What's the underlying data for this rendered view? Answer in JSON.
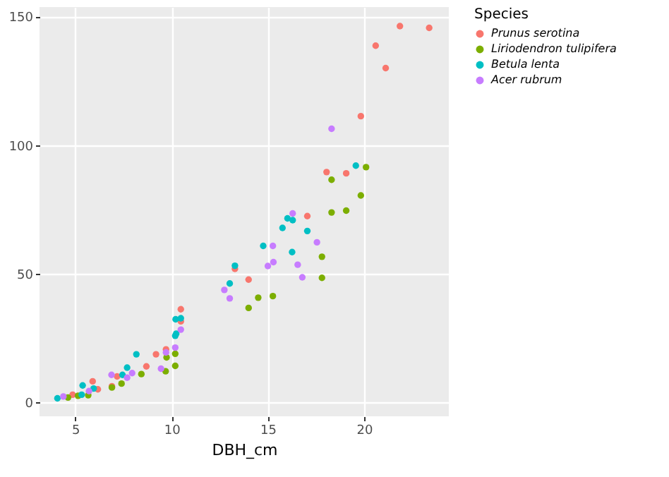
{
  "chart_data": {
    "type": "scatter",
    "xlabel": "DBH_cm",
    "legend_title": "Species",
    "legend": "right",
    "marker": "circle",
    "grid": true,
    "xlim": [
      3.14,
      24.4
    ],
    "ylim": [
      -5.4,
      153.6
    ],
    "xticks": [
      5,
      10,
      15,
      20
    ],
    "yticks": [
      0,
      50,
      100,
      150
    ],
    "series": [
      {
        "name": "Prunus serotina",
        "color": "#f8766d",
        "x": [
          4.86,
          5.9,
          6.17,
          6.9,
          7.17,
          8.69,
          9.19,
          9.71,
          10.48,
          10.48,
          13.29,
          14.0,
          17.05,
          18.05,
          19.07,
          19.83,
          20.6,
          21.12,
          21.86,
          23.38
        ],
        "values": [
          3.0,
          8.2,
          5.1,
          6.3,
          10.1,
          14.0,
          18.7,
          20.6,
          31.5,
          36.2,
          51.9,
          47.7,
          72.4,
          89.5,
          89.0,
          111.2,
          138.6,
          129.9,
          146.2,
          145.5
        ]
      },
      {
        "name": "Liriodendron tulipifera",
        "color": "#7cae00",
        "x": [
          4.62,
          5.14,
          5.67,
          6.9,
          7.4,
          8.43,
          9.69,
          9.74,
          10.19,
          10.19,
          14.0,
          14.5,
          15.26,
          17.81,
          17.81,
          18.31,
          18.31,
          19.07,
          20.1,
          19.83
        ],
        "values": [
          1.9,
          2.6,
          2.8,
          5.8,
          7.3,
          11.0,
          12.1,
          17.5,
          18.9,
          14.2,
          36.7,
          40.7,
          41.3,
          56.6,
          48.4,
          73.8,
          86.5,
          74.5,
          91.4,
          80.4
        ]
      },
      {
        "name": "Betula lenta",
        "color": "#00bfc4",
        "x": [
          4.07,
          5.38,
          5.33,
          5.95,
          7.45,
          7.69,
          8.17,
          10.19,
          10.24,
          10.21,
          10.48,
          13.02,
          13.29,
          14.76,
          15.76,
          16.02,
          16.29,
          16.26,
          17.05,
          19.57
        ],
        "values": [
          1.6,
          6.6,
          3.0,
          5.4,
          10.7,
          13.5,
          18.7,
          25.9,
          26.7,
          32.3,
          32.7,
          46.2,
          53.1,
          60.8,
          67.8,
          71.5,
          70.8,
          58.4,
          66.6,
          92.0
        ]
      },
      {
        "name": "Acer rubrum",
        "color": "#c77cff",
        "x": [
          4.38,
          5.71,
          6.88,
          7.69,
          7.95,
          9.45,
          9.71,
          10.19,
          10.48,
          12.74,
          13.02,
          15.26,
          15.0,
          15.29,
          16.29,
          16.55,
          16.79,
          17.55,
          18.31
        ],
        "values": [
          2.3,
          4.4,
          10.7,
          9.6,
          11.4,
          13.1,
          19.4,
          21.3,
          28.3,
          43.7,
          40.4,
          60.8,
          53.0,
          54.5,
          73.4,
          53.5,
          48.6,
          62.2,
          106.3
        ]
      }
    ]
  }
}
